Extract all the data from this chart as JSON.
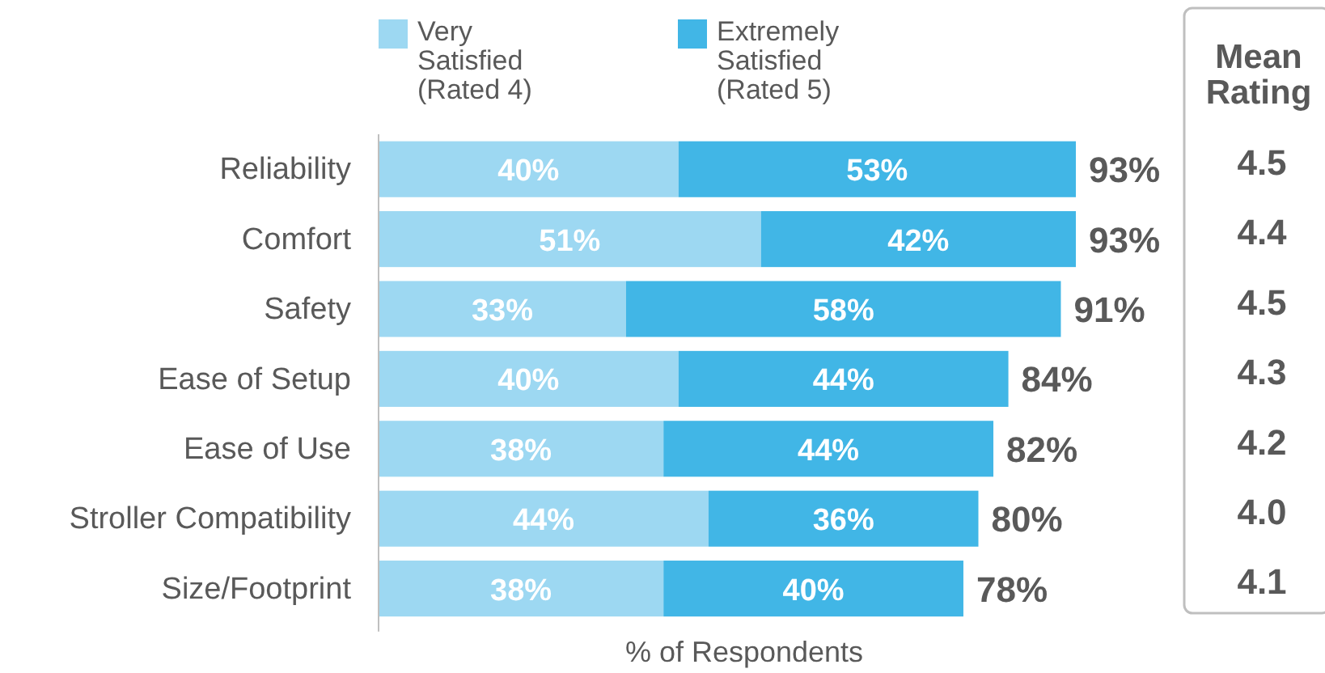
{
  "chart_data": [
    {
      "type": "bar",
      "orientation": "horizontal",
      "stacked": true,
      "xlabel": "% of Respondents",
      "legend": "top",
      "categories": [
        "Reliability",
        "Comfort",
        "Safety",
        "Ease of Setup",
        "Ease of Use",
        "Stroller Compatibility",
        "Size/Footprint"
      ],
      "series": [
        {
          "name": "Very Satisfied (Rated 4)",
          "color": "#9dd8f2",
          "values": [
            40,
            51,
            33,
            40,
            38,
            44,
            38
          ],
          "value_labels": [
            "40%",
            "51%",
            "33%",
            "40%",
            "38%",
            "44%",
            "38%"
          ]
        },
        {
          "name": "Extremely Satisfied (Rated 5)",
          "color": "#41b6e6",
          "values": [
            53,
            42,
            58,
            44,
            44,
            36,
            40
          ],
          "value_labels": [
            "53%",
            "42%",
            "58%",
            "44%",
            "44%",
            "36%",
            "40%"
          ]
        }
      ],
      "totals": [
        "93%",
        "93%",
        "91%",
        "84%",
        "82%",
        "80%",
        "78%"
      ]
    },
    {
      "type": "other",
      "title": "Mean Rating",
      "annotations": [
        "4.5",
        "4.4",
        "4.5",
        "4.3",
        "4.2",
        "4.0",
        "4.1"
      ]
    }
  ]
}
